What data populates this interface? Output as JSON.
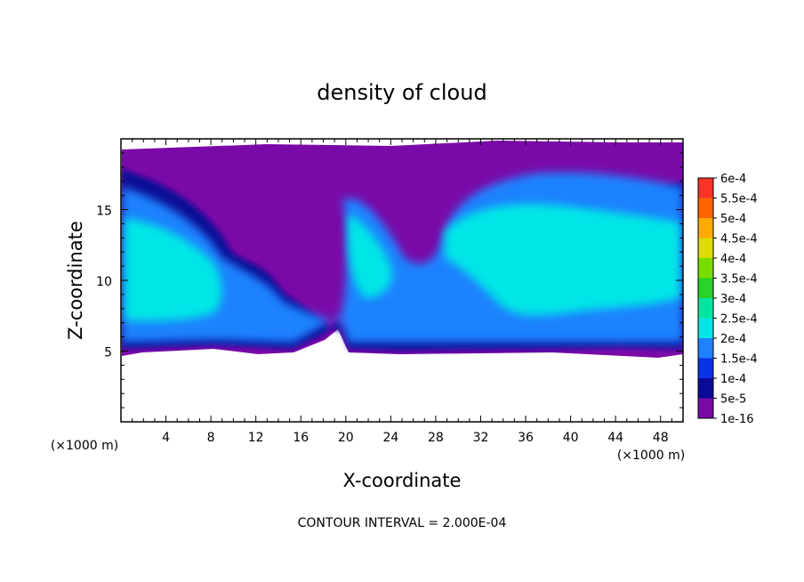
{
  "chart_data": {
    "type": "heatmap",
    "title": "density of cloud",
    "xlabel": "X-coordinate",
    "ylabel": "Z-coordinate",
    "x_unit": "(×1000 m)",
    "x_ticks": [
      4,
      8,
      12,
      16,
      20,
      24,
      28,
      32,
      36,
      40,
      44,
      48
    ],
    "y_ticks": [
      5,
      10,
      15
    ],
    "xlim": [
      0,
      50
    ],
    "ylim": [
      0,
      20
    ],
    "contour_interval_text": "CONTOUR INTERVAL = 2.000E-04",
    "colorbar": {
      "levels": [
        "1e-16",
        "5e-5",
        "1e-4",
        "1.5e-4",
        "2e-4",
        "2.5e-4",
        "3e-4",
        "3.5e-4",
        "4e-4",
        "4.5e-4",
        "5e-4",
        "5.5e-4",
        "6e-4"
      ],
      "colors": [
        "#7a0aa8",
        "#0a0a96",
        "#0a32e6",
        "#1e82ff",
        "#00e6e6",
        "#00e6a0",
        "#28d228",
        "#78dc00",
        "#dcdc00",
        "#ffaa00",
        "#ff6400",
        "#ff3228",
        "#ff8c96"
      ]
    }
  }
}
